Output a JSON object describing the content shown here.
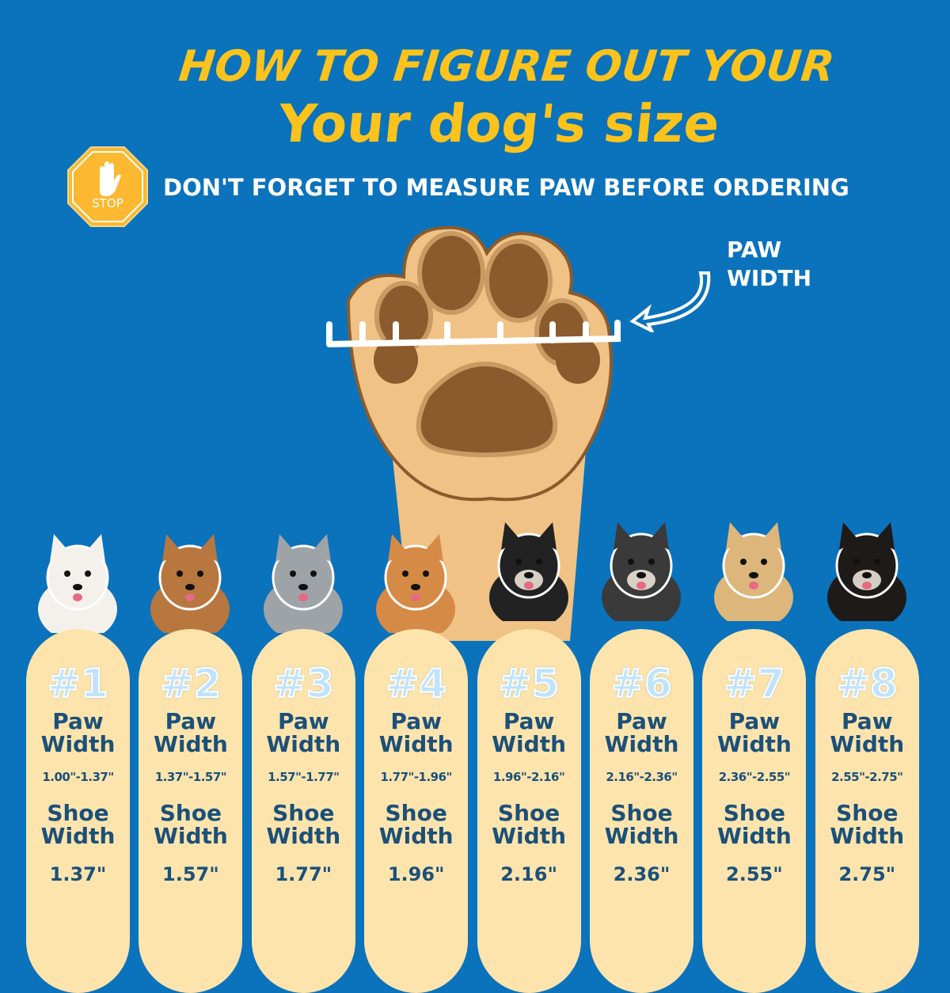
{
  "title_line1": "HOW TO FIGURE OUT YOUR",
  "title_line2": "Your dog's size",
  "stop_sign": {
    "text": "STOP",
    "icon": "hand-stop-icon",
    "color": "#fbb830"
  },
  "subtitle": "DON'T FORGET TO MEASURE PAW BEFORE ORDERING",
  "paw_label": {
    "line1": "PAW",
    "line2": "WIDTH"
  },
  "colors": {
    "background": "#0b72bc",
    "title": "#fbc31c",
    "card": "#fde4ad",
    "card_text": "#1b5079"
  },
  "sizes": [
    {
      "num": "#1",
      "paw_label1": "Paw",
      "paw_label2": "Width",
      "range": "1.00\"-1.37\"",
      "shoe_label1": "Shoe",
      "shoe_label2": "Width",
      "shoe": "1.37\""
    },
    {
      "num": "#2",
      "paw_label1": "Paw",
      "paw_label2": "Width",
      "range": "1.37\"-1.57\"",
      "shoe_label1": "Shoe",
      "shoe_label2": "Width",
      "shoe": "1.57\""
    },
    {
      "num": "#3",
      "paw_label1": "Paw",
      "paw_label2": "Width",
      "range": "1.57\"-1.77\"",
      "shoe_label1": "Shoe",
      "shoe_label2": "Width",
      "shoe": "1.77\""
    },
    {
      "num": "#4",
      "paw_label1": "Paw",
      "paw_label2": "Width",
      "range": "1.77\"-1.96\"",
      "shoe_label1": "Shoe",
      "shoe_label2": "Width",
      "shoe": "1.96\""
    },
    {
      "num": "#5",
      "paw_label1": "Paw",
      "paw_label2": "Width",
      "range": "1.96\"-2.16\"",
      "shoe_label1": "Shoe",
      "shoe_label2": "Width",
      "shoe": "2.16\""
    },
    {
      "num": "#6",
      "paw_label1": "Paw",
      "paw_label2": "Width",
      "range": "2.16\"-2.36\"",
      "shoe_label1": "Shoe",
      "shoe_label2": "Width",
      "shoe": "2.36\""
    },
    {
      "num": "#7",
      "paw_label1": "Paw",
      "paw_label2": "Width",
      "range": "2.36\"-2.55\"",
      "shoe_label1": "Shoe",
      "shoe_label2": "Width",
      "shoe": "2.55\""
    },
    {
      "num": "#8",
      "paw_label1": "Paw",
      "paw_label2": "Width",
      "range": "2.55\"-2.75\"",
      "shoe_label1": "Shoe",
      "shoe_label2": "Width",
      "shoe": "2.75\""
    }
  ],
  "dog_fur_colors": [
    "#f4f1ec",
    "#b7773e",
    "#9ea3a8",
    "#d58a45",
    "#222222",
    "#3a3a3a",
    "#dcb67a",
    "#1e1a17"
  ]
}
